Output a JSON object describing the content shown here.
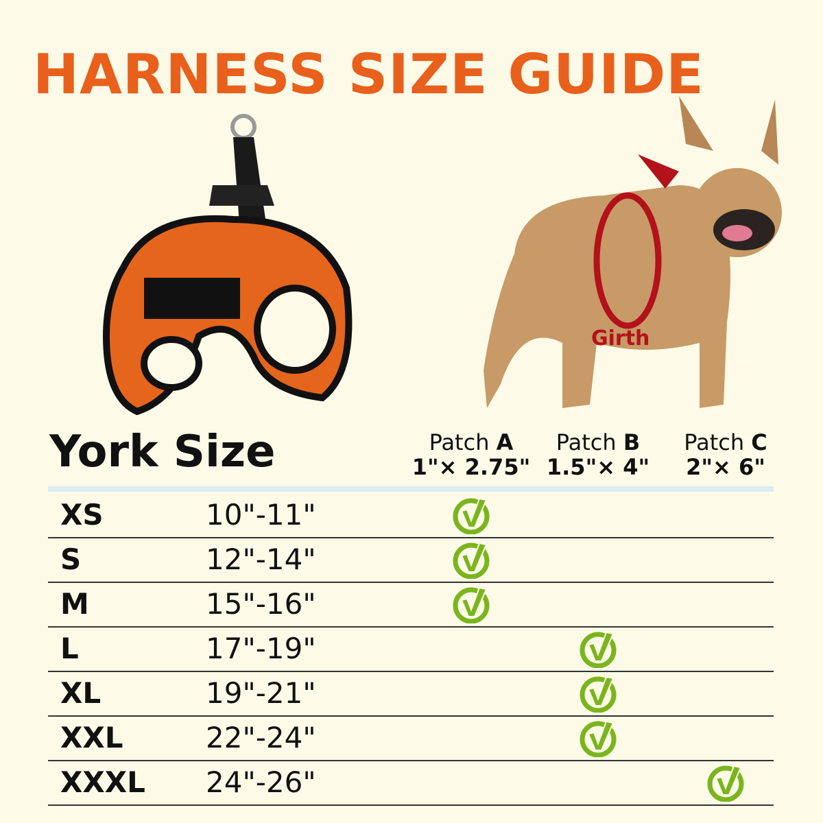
{
  "title": "HARNESS SIZE GUIDE",
  "girth_label": "Girth",
  "table": {
    "heading": "York Size",
    "patches": [
      {
        "label": "Patch",
        "letter": "A",
        "size": "1\"× 2.75\""
      },
      {
        "label": "Patch",
        "letter": "B",
        "size": "1.5\"× 4\""
      },
      {
        "label": "Patch",
        "letter": "C",
        "size": "2\"× 6\""
      }
    ],
    "rows": [
      {
        "size": "XS",
        "girth": "10\"-11\"",
        "patch": "A"
      },
      {
        "size": "S",
        "girth": "12\"-14\"",
        "patch": "A"
      },
      {
        "size": "M",
        "girth": "15\"-16\"",
        "patch": "A"
      },
      {
        "size": "L",
        "girth": "17\"-19\"",
        "patch": "B"
      },
      {
        "size": "XL",
        "girth": "19\"-21\"",
        "patch": "B"
      },
      {
        "size": "XXL",
        "girth": "22\"-24\"",
        "patch": "B"
      },
      {
        "size": "XXXL",
        "girth": "24\"-26\"",
        "patch": "C"
      }
    ]
  },
  "colors": {
    "title": "#e8601c",
    "check": "#7ab51d",
    "girth": "#b3121a",
    "background": "#fdfbe8"
  },
  "icons": {
    "check": "check-circle-icon"
  }
}
